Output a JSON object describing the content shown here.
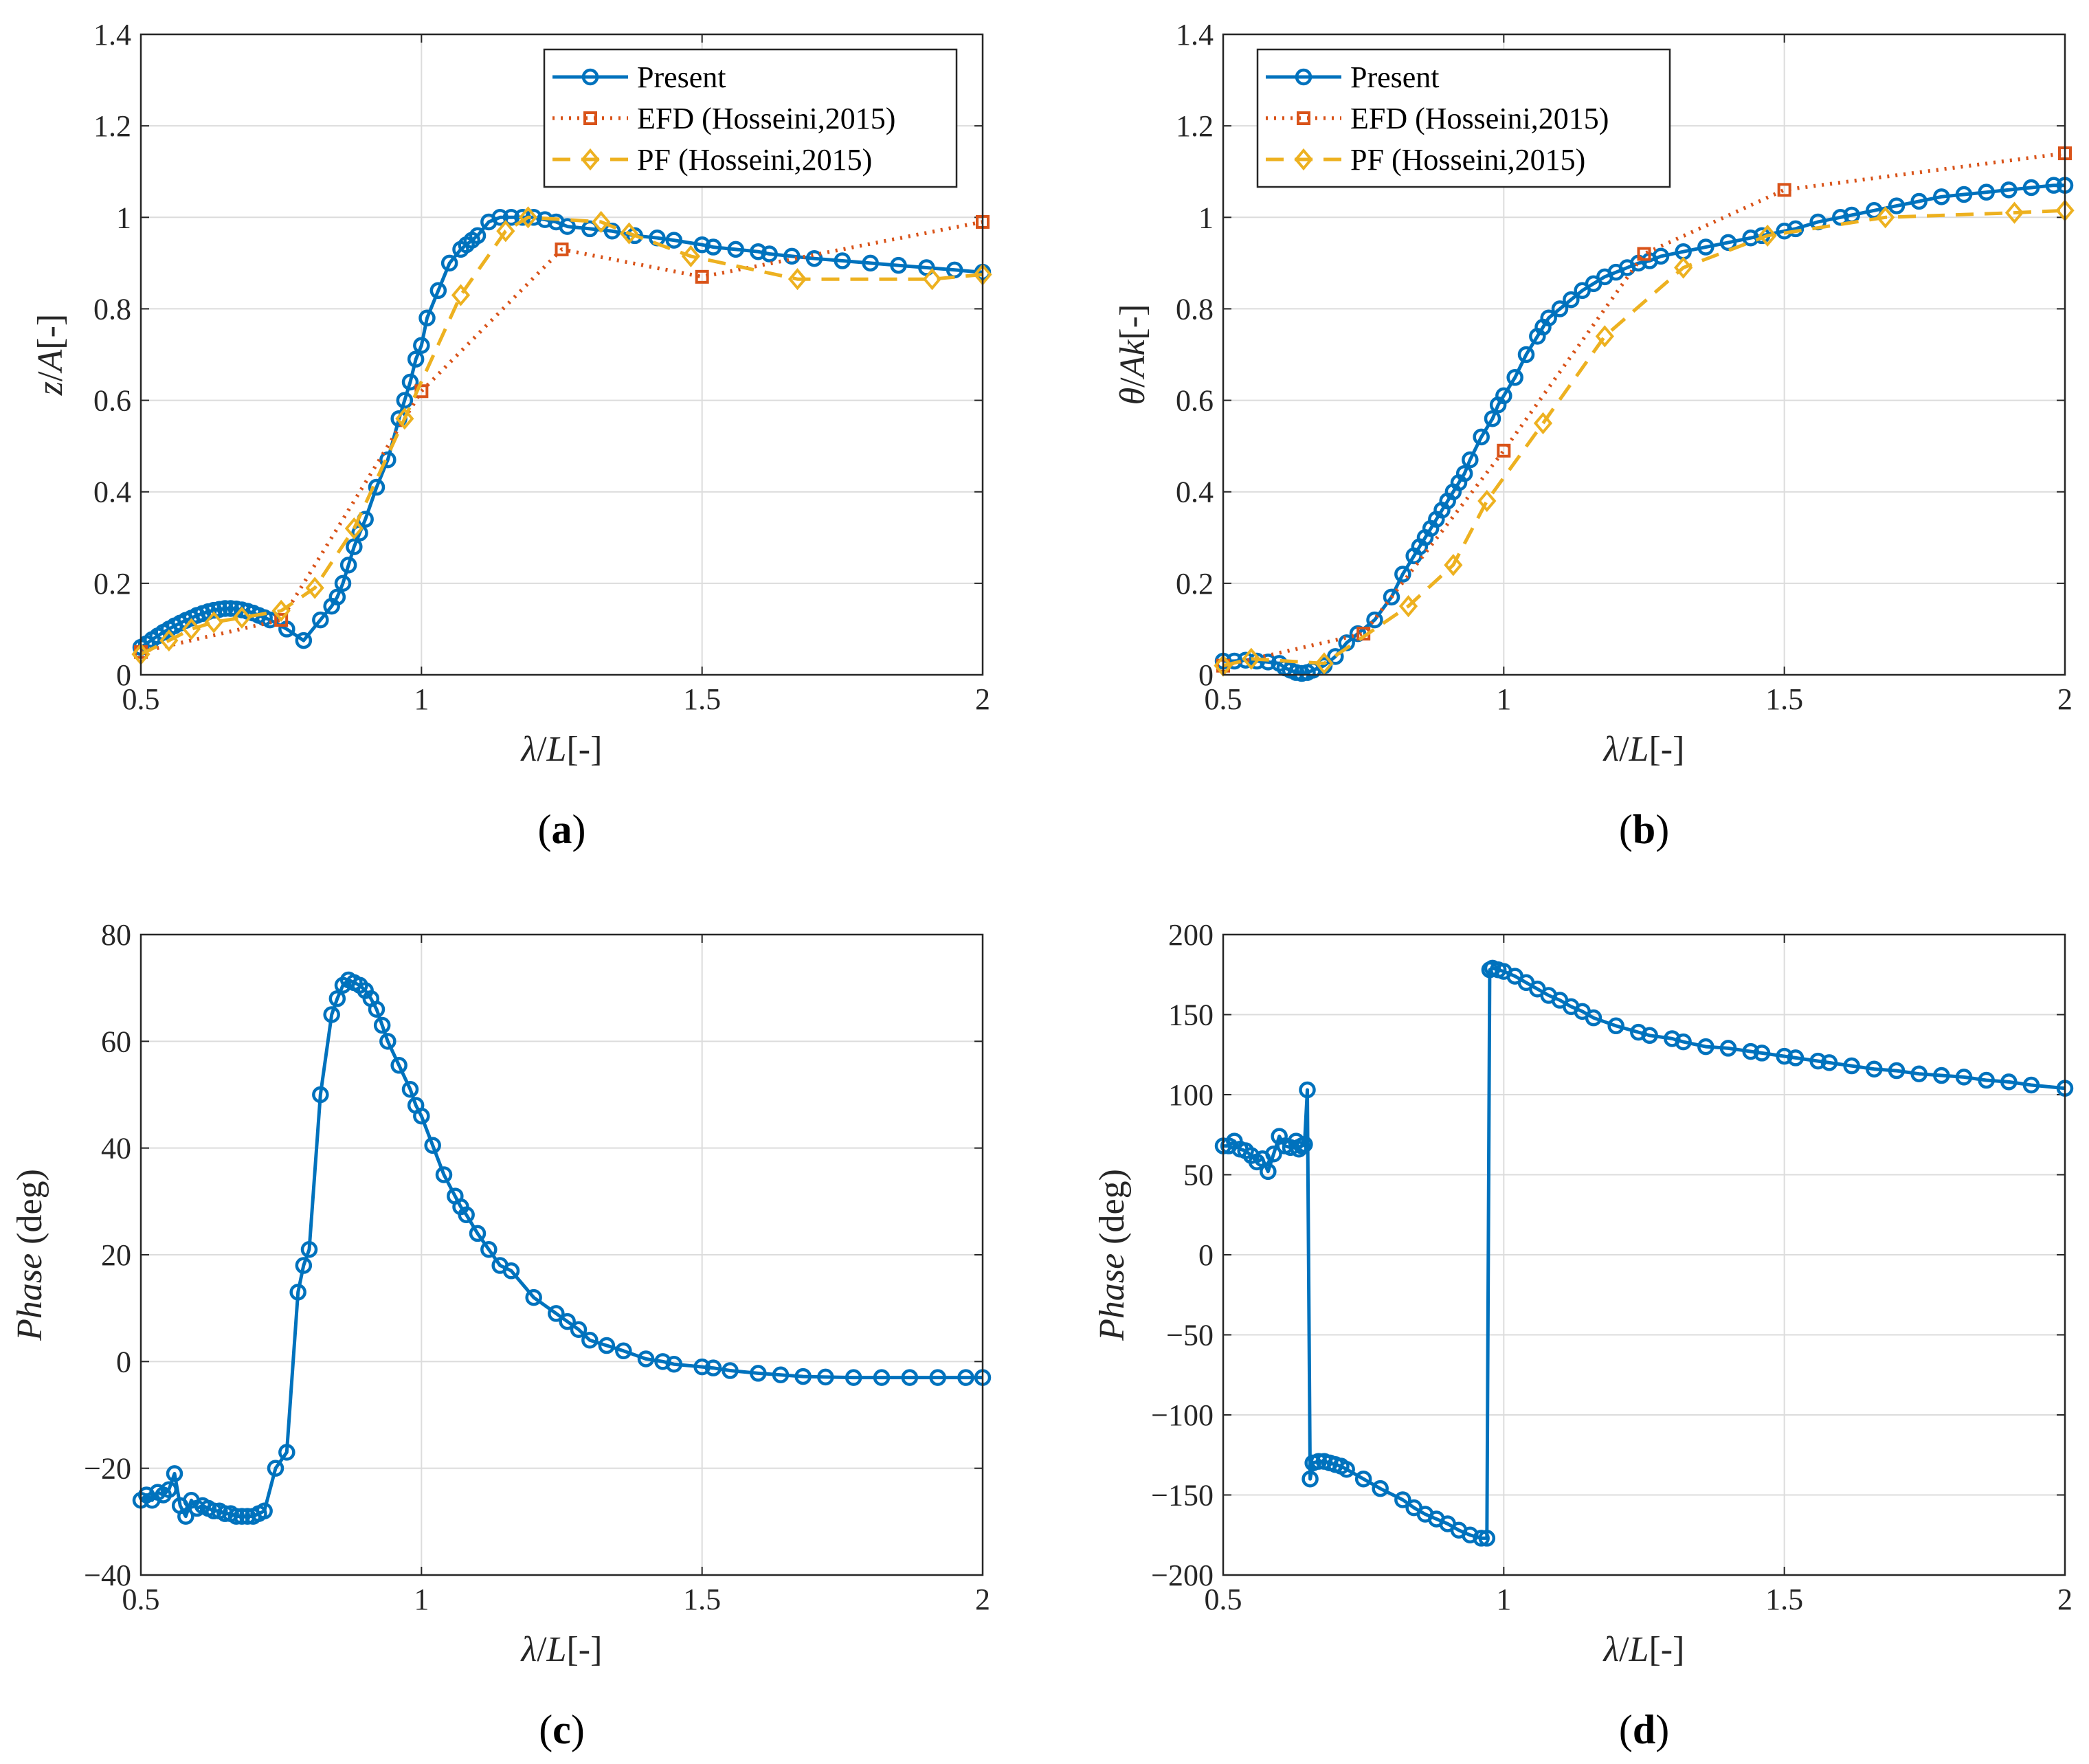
{
  "colors": {
    "present": "#0072BD",
    "efd": "#D95319",
    "pf": "#EDB120",
    "grid": "#dcdcdc",
    "axis": "#262626"
  },
  "chart_data": [
    {
      "id": "a",
      "type": "line",
      "label": "(a)",
      "ylabel": "z/A[-]",
      "xlabel": "λ/L[-]",
      "xlim": [
        0.5,
        2
      ],
      "ylim": [
        0,
        1.4
      ],
      "xticks": [
        "0.5",
        "1",
        "1.5",
        "2"
      ],
      "yticks": [
        "0",
        "0.2",
        "0.4",
        "0.6",
        "0.8",
        "1",
        "1.2",
        "1.4"
      ],
      "legend": {
        "position": "top-right",
        "entries": [
          "Present",
          "EFD (Hosseini,2015)",
          "PF (Hosseini,2015)"
        ]
      },
      "series": [
        {
          "name": "Present",
          "style": "present",
          "x": [
            0.5,
            0.51,
            0.52,
            0.53,
            0.54,
            0.55,
            0.56,
            0.57,
            0.58,
            0.59,
            0.6,
            0.61,
            0.62,
            0.63,
            0.64,
            0.65,
            0.66,
            0.67,
            0.68,
            0.69,
            0.7,
            0.71,
            0.72,
            0.73,
            0.76,
            0.79,
            0.82,
            0.84,
            0.85,
            0.86,
            0.87,
            0.88,
            0.89,
            0.9,
            0.92,
            0.94,
            0.96,
            0.97,
            0.98,
            0.99,
            1.0,
            1.01,
            1.03,
            1.05,
            1.07,
            1.08,
            1.09,
            1.1,
            1.12,
            1.14,
            1.16,
            1.18,
            1.2,
            1.22,
            1.24,
            1.26,
            1.3,
            1.34,
            1.38,
            1.42,
            1.45,
            1.5,
            1.52,
            1.56,
            1.6,
            1.62,
            1.66,
            1.7,
            1.75,
            1.8,
            1.85,
            1.9,
            1.95,
            2.0
          ],
          "y": [
            0.06,
            0.068,
            0.077,
            0.085,
            0.093,
            0.1,
            0.107,
            0.113,
            0.119,
            0.124,
            0.13,
            0.134,
            0.138,
            0.141,
            0.143,
            0.145,
            0.145,
            0.144,
            0.142,
            0.139,
            0.135,
            0.13,
            0.125,
            0.12,
            0.1,
            0.075,
            0.12,
            0.15,
            0.17,
            0.2,
            0.24,
            0.28,
            0.31,
            0.34,
            0.41,
            0.47,
            0.56,
            0.6,
            0.64,
            0.69,
            0.72,
            0.78,
            0.84,
            0.9,
            0.93,
            0.94,
            0.95,
            0.96,
            0.99,
            1.0,
            1.0,
            1.0,
            1.0,
            0.995,
            0.99,
            0.98,
            0.975,
            0.97,
            0.96,
            0.955,
            0.95,
            0.94,
            0.935,
            0.93,
            0.925,
            0.92,
            0.915,
            0.91,
            0.905,
            0.9,
            0.895,
            0.89,
            0.885,
            0.88
          ]
        },
        {
          "name": "EFD (Hosseini,2015)",
          "style": "efd",
          "x": [
            0.5,
            0.75,
            1.0,
            1.25,
            1.5,
            2.0
          ],
          "y": [
            0.05,
            0.12,
            0.62,
            0.93,
            0.87,
            0.99
          ]
        },
        {
          "name": "PF (Hosseini,2015)",
          "style": "pf",
          "x": [
            0.5,
            0.55,
            0.59,
            0.63,
            0.68,
            0.75,
            0.81,
            0.88,
            0.97,
            1.07,
            1.15,
            1.19,
            1.32,
            1.37,
            1.48,
            1.67,
            1.91,
            2.0
          ],
          "y": [
            0.045,
            0.075,
            0.1,
            0.115,
            0.125,
            0.14,
            0.19,
            0.32,
            0.56,
            0.83,
            0.97,
            1.0,
            0.99,
            0.965,
            0.915,
            0.865,
            0.865,
            0.875
          ]
        }
      ]
    },
    {
      "id": "b",
      "type": "line",
      "label": "(b)",
      "ylabel": "θ/Ak[-]",
      "xlabel": "λ/L[-]",
      "xlim": [
        0.5,
        2
      ],
      "ylim": [
        0,
        1.4
      ],
      "xticks": [
        "0.5",
        "1",
        "1.5",
        "2"
      ],
      "yticks": [
        "0",
        "0.2",
        "0.4",
        "0.6",
        "0.8",
        "1",
        "1.2",
        "1.4"
      ],
      "legend": {
        "position": "top-left",
        "entries": [
          "Present",
          "EFD (Hosseini,2015)",
          "PF (Hosseini,2015)"
        ]
      },
      "series": [
        {
          "name": "Present",
          "style": "present",
          "x": [
            0.5,
            0.52,
            0.54,
            0.56,
            0.58,
            0.6,
            0.61,
            0.62,
            0.63,
            0.64,
            0.65,
            0.66,
            0.68,
            0.7,
            0.72,
            0.74,
            0.77,
            0.8,
            0.82,
            0.84,
            0.85,
            0.86,
            0.87,
            0.88,
            0.89,
            0.9,
            0.91,
            0.92,
            0.93,
            0.94,
            0.96,
            0.98,
            0.99,
            1.0,
            1.02,
            1.04,
            1.06,
            1.07,
            1.08,
            1.1,
            1.12,
            1.14,
            1.16,
            1.18,
            1.2,
            1.22,
            1.24,
            1.26,
            1.28,
            1.32,
            1.36,
            1.4,
            1.44,
            1.46,
            1.5,
            1.52,
            1.56,
            1.6,
            1.62,
            1.66,
            1.7,
            1.74,
            1.78,
            1.82,
            1.86,
            1.9,
            1.94,
            1.98,
            2.0
          ],
          "y": [
            0.03,
            0.03,
            0.032,
            0.03,
            0.028,
            0.025,
            0.015,
            0.01,
            0.005,
            0.003,
            0.005,
            0.01,
            0.02,
            0.04,
            0.07,
            0.09,
            0.12,
            0.17,
            0.22,
            0.26,
            0.28,
            0.3,
            0.32,
            0.34,
            0.36,
            0.38,
            0.4,
            0.42,
            0.44,
            0.47,
            0.52,
            0.56,
            0.59,
            0.61,
            0.65,
            0.7,
            0.74,
            0.76,
            0.78,
            0.8,
            0.82,
            0.84,
            0.855,
            0.87,
            0.88,
            0.89,
            0.9,
            0.905,
            0.915,
            0.925,
            0.935,
            0.945,
            0.955,
            0.96,
            0.97,
            0.975,
            0.99,
            1.0,
            1.005,
            1.015,
            1.025,
            1.035,
            1.045,
            1.05,
            1.055,
            1.06,
            1.065,
            1.07,
            1.07
          ]
        },
        {
          "name": "EFD (Hosseini,2015)",
          "style": "efd",
          "x": [
            0.5,
            0.75,
            1.0,
            1.25,
            1.5,
            2.0
          ],
          "y": [
            0.02,
            0.09,
            0.49,
            0.92,
            1.06,
            1.14
          ]
        },
        {
          "name": "PF (Hosseini,2015)",
          "style": "pf",
          "x": [
            0.5,
            0.55,
            0.68,
            0.83,
            0.91,
            0.97,
            1.07,
            1.18,
            1.32,
            1.47,
            1.68,
            1.91,
            2.0
          ],
          "y": [
            0.02,
            0.035,
            0.025,
            0.15,
            0.24,
            0.38,
            0.55,
            0.74,
            0.89,
            0.96,
            1.0,
            1.01,
            1.015
          ]
        }
      ]
    },
    {
      "id": "c",
      "type": "line",
      "label": "(c)",
      "ylabel": "Phase (deg)",
      "xlabel": "λ/L[-]",
      "xlim": [
        0.5,
        2
      ],
      "ylim": [
        -40,
        80
      ],
      "xticks": [
        "0.5",
        "1",
        "1.5",
        "2"
      ],
      "yticks": [
        "−40",
        "−20",
        "0",
        "20",
        "40",
        "60",
        "80"
      ],
      "series": [
        {
          "name": "Present",
          "style": "present",
          "x": [
            0.5,
            0.51,
            0.52,
            0.53,
            0.54,
            0.55,
            0.56,
            0.57,
            0.58,
            0.59,
            0.6,
            0.61,
            0.62,
            0.63,
            0.64,
            0.65,
            0.66,
            0.67,
            0.68,
            0.69,
            0.7,
            0.71,
            0.72,
            0.74,
            0.76,
            0.78,
            0.79,
            0.8,
            0.82,
            0.84,
            0.85,
            0.86,
            0.87,
            0.88,
            0.89,
            0.9,
            0.91,
            0.92,
            0.93,
            0.94,
            0.96,
            0.98,
            0.99,
            1.0,
            1.02,
            1.04,
            1.06,
            1.07,
            1.08,
            1.1,
            1.12,
            1.14,
            1.16,
            1.2,
            1.24,
            1.26,
            1.28,
            1.3,
            1.33,
            1.36,
            1.4,
            1.43,
            1.45,
            1.5,
            1.52,
            1.55,
            1.6,
            1.64,
            1.68,
            1.72,
            1.77,
            1.82,
            1.87,
            1.92,
            1.97,
            2.0
          ],
          "y": [
            -26,
            -25,
            -26,
            -24.5,
            -25,
            -24,
            -21,
            -27,
            -29,
            -26,
            -27.5,
            -27,
            -27.5,
            -28,
            -28,
            -28.5,
            -28.5,
            -29,
            -29,
            -29,
            -29,
            -28.5,
            -28,
            -20,
            -17,
            13,
            18,
            21,
            50,
            65,
            68,
            70.5,
            71.5,
            71,
            70.5,
            69.5,
            68,
            66,
            63,
            60,
            55.5,
            51,
            48,
            46,
            40.5,
            35,
            31,
            29,
            27.5,
            24,
            21,
            18,
            17,
            12,
            9,
            7.5,
            6,
            4,
            3,
            2,
            0.5,
            0,
            -0.5,
            -1,
            -1.2,
            -1.7,
            -2.2,
            -2.5,
            -2.8,
            -2.9,
            -3.0,
            -3.0,
            -3.0,
            -3.0,
            -3.0,
            -3.0
          ]
        }
      ]
    },
    {
      "id": "d",
      "type": "line",
      "label": "(d)",
      "ylabel": "Phase (deg)",
      "xlabel": "λ/L[-]",
      "xlim": [
        0.5,
        2
      ],
      "ylim": [
        -200,
        200
      ],
      "xticks": [
        "0.5",
        "1",
        "1.5",
        "2"
      ],
      "yticks": [
        "−200",
        "−150",
        "−100",
        "−50",
        "0",
        "50",
        "100",
        "150",
        "200"
      ],
      "series": [
        {
          "name": "Present",
          "style": "present",
          "x": [
            0.5,
            0.51,
            0.52,
            0.53,
            0.54,
            0.55,
            0.56,
            0.57,
            0.58,
            0.59,
            0.6,
            0.61,
            0.62,
            0.63,
            0.635,
            0.64,
            0.645,
            0.65,
            0.655,
            0.66,
            0.67,
            0.68,
            0.69,
            0.7,
            0.71,
            0.72,
            0.75,
            0.78,
            0.82,
            0.84,
            0.86,
            0.88,
            0.9,
            0.92,
            0.94,
            0.96,
            0.97,
            0.975,
            0.98,
            0.99,
            1.0,
            1.02,
            1.04,
            1.06,
            1.08,
            1.1,
            1.12,
            1.14,
            1.16,
            1.2,
            1.24,
            1.26,
            1.3,
            1.32,
            1.36,
            1.4,
            1.44,
            1.46,
            1.5,
            1.52,
            1.56,
            1.58,
            1.62,
            1.66,
            1.7,
            1.74,
            1.78,
            1.82,
            1.86,
            1.9,
            1.94,
            2.0
          ],
          "y": [
            68,
            68,
            71,
            66,
            65,
            62,
            58,
            60,
            52,
            63,
            74,
            68,
            67,
            71,
            66,
            68,
            69,
            103,
            -140,
            -130,
            -129,
            -129,
            -130,
            -131,
            -132,
            -134,
            -140,
            -146,
            -153,
            -158,
            -162,
            -165,
            -168,
            -172,
            -175,
            -177,
            -177,
            178,
            179,
            178,
            177,
            174,
            170,
            166,
            162,
            159,
            155,
            152,
            148,
            143,
            139,
            137,
            135,
            133,
            130,
            129,
            127,
            126,
            124,
            123,
            121,
            120,
            118,
            116,
            115,
            113,
            112,
            111,
            109,
            108,
            106,
            104
          ]
        }
      ]
    }
  ]
}
